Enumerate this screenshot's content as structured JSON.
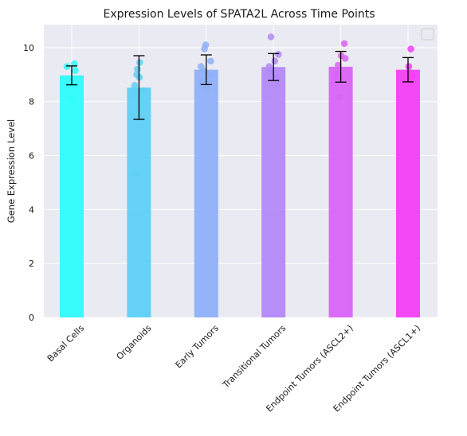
{
  "chart_data": {
    "type": "bar",
    "title": "Expression Levels of SPATA2L Across Time Points",
    "ylabel": "Gene Expression Level",
    "xlabel": "",
    "ylim": [
      0,
      10.85
    ],
    "yticks": [
      0,
      2,
      4,
      6,
      8,
      10
    ],
    "grid": true,
    "legend": "top-right, empty",
    "categories": [
      "Basal Cells",
      "Organoids",
      "Early Tumors",
      "Transitional Tumors",
      "Endpoint Tumors (ASCL2+)",
      "Endpoint Tumors (ASCL1+)"
    ],
    "values": [
      8.97,
      8.52,
      9.18,
      9.28,
      9.29,
      9.18
    ],
    "errors": [
      0.35,
      1.18,
      0.55,
      0.5,
      0.57,
      0.45
    ],
    "colors": [
      "#2efcfc",
      "#5fd0f5",
      "#8fb0f8",
      "#b489f7",
      "#d964f7",
      "#f43ff5"
    ],
    "points": [
      [
        9.4,
        9.3,
        8.1,
        9.15
      ],
      [
        9.45,
        9.2,
        9.0,
        8.9,
        8.6,
        8.3,
        8.4,
        5.3
      ],
      [
        10.1,
        9.95,
        9.5,
        9.3,
        9.0,
        8.75,
        8.5,
        9.15
      ],
      [
        10.4,
        9.75,
        9.5,
        9.3,
        9.1,
        8.9,
        8.65
      ],
      [
        10.15,
        9.7,
        9.6,
        9.35,
        9.1,
        8.95,
        8.15
      ],
      [
        9.95,
        9.3,
        9.05,
        8.95,
        8.9
      ]
    ]
  }
}
